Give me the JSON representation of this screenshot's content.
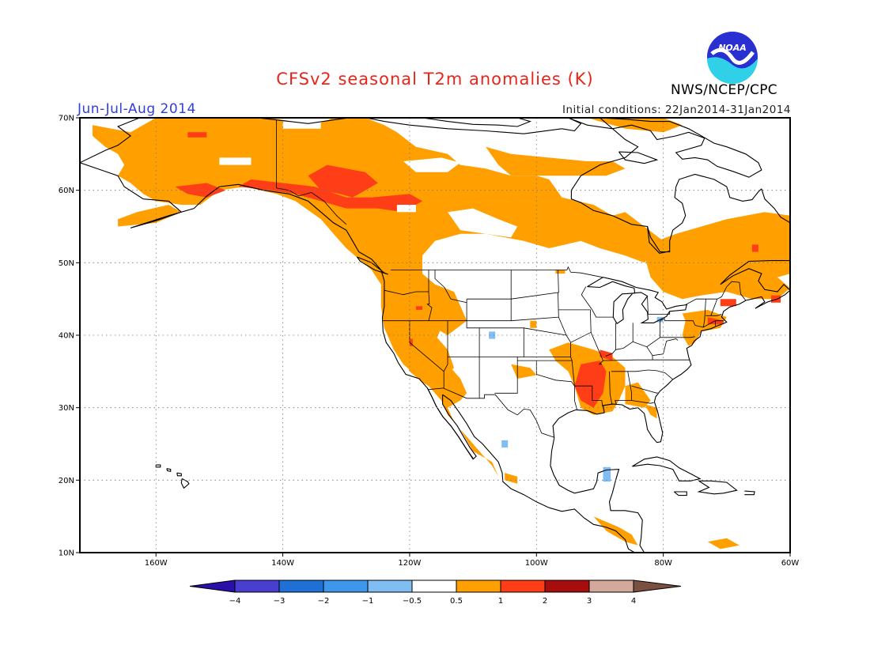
{
  "header": {
    "title": "CFSv2 seasonal T2m anomalies (K)",
    "period": "Jun-Jul-Aug 2014",
    "initial_conditions": "Initial conditions: 22Jan2014-31Jan2014",
    "agency": "NWS/NCEP/CPC",
    "logo_text": "NOAA"
  },
  "map": {
    "lon_range": [
      -172,
      -60
    ],
    "lat_range": [
      10,
      70
    ],
    "lat_ticks": [
      {
        "value": 70,
        "label": "70N"
      },
      {
        "value": 60,
        "label": "60N"
      },
      {
        "value": 50,
        "label": "50N"
      },
      {
        "value": 40,
        "label": "40N"
      },
      {
        "value": 30,
        "label": "30N"
      },
      {
        "value": 20,
        "label": "20N"
      },
      {
        "value": 10,
        "label": "10N"
      }
    ],
    "lon_ticks": [
      {
        "value": -160,
        "label": "160W"
      },
      {
        "value": -140,
        "label": "140W"
      },
      {
        "value": -120,
        "label": "120W"
      },
      {
        "value": -100,
        "label": "100W"
      },
      {
        "value": -80,
        "label": "80W"
      },
      {
        "value": -60,
        "label": "60W"
      }
    ],
    "grid": "dotted"
  },
  "legend": {
    "labels": [
      "−4",
      "−3",
      "−2",
      "−1",
      "−0.5",
      "0.5",
      "1",
      "2",
      "3",
      "4"
    ],
    "colors": [
      "#2a10a8",
      "#4a3ed0",
      "#1e6fd6",
      "#3f97eb",
      "#7fbdf3",
      "#ffffff",
      "#ff9f00",
      "#ff3d17",
      "#a70d0d",
      "#d2a99a",
      "#7c5040"
    ]
  }
}
